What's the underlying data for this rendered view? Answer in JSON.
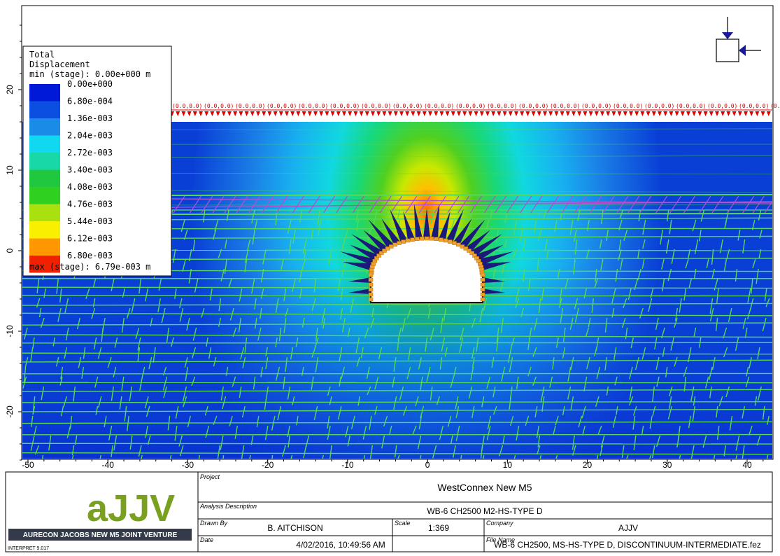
{
  "plot": {
    "x_ticks": [
      "-50",
      "-40",
      "-30",
      "-20",
      "-10",
      "0",
      "10",
      "20",
      "30",
      "40"
    ],
    "y_ticks": [
      "20",
      "10",
      "0",
      "-10",
      "-20"
    ],
    "x_tick_values": [
      -50,
      -40,
      -30,
      -20,
      -10,
      0,
      10,
      20,
      30,
      40
    ],
    "y_tick_values": [
      20,
      10,
      0,
      -10,
      -20
    ],
    "x_range": [
      -51,
      43
    ],
    "y_range": [
      -27.5,
      30
    ],
    "load_label": "(0.0,0.0)",
    "colors": {
      "deep_blue": "#0a3fd6",
      "blue": "#1a7ee6",
      "light_blue": "#18a8f0",
      "cyan": "#10d8e8",
      "green": "#30d030",
      "yellow_green": "#b8e800",
      "orange": "#ff9000",
      "load_red": "#e00000",
      "joint_green": "#58d858",
      "bolt_navy": "#1a1a7a",
      "liner_orange": "#f0a030",
      "purple": "#b050d0"
    }
  },
  "legend": {
    "title_line1": "Total",
    "title_line2": "Displacement",
    "min_label": "min (stage): 0.00e+000 m",
    "max_label": "max (stage): 6.79e-003 m",
    "entries": [
      {
        "label": "0.00e+000",
        "color": "#0018d8"
      },
      {
        "label": "6.80e-004",
        "color": "#0a4fe0"
      },
      {
        "label": "1.36e-003",
        "color": "#1a8ce8"
      },
      {
        "label": "2.04e-003",
        "color": "#10d8f0"
      },
      {
        "label": "2.72e-003",
        "color": "#18d8a8"
      },
      {
        "label": "3.40e-003",
        "color": "#20c840"
      },
      {
        "label": "4.08e-003",
        "color": "#30d020"
      },
      {
        "label": "4.76e-003",
        "color": "#a8e010"
      },
      {
        "label": "5.44e-003",
        "color": "#f8f000"
      },
      {
        "label": "6.12e-003",
        "color": "#ff9800"
      },
      {
        "label": "6.80e-003",
        "color": "#f02000"
      }
    ]
  },
  "titleblock": {
    "logo_text": "aJJV",
    "company_banner": "AURECON JACOBS NEW M5 JOINT VENTURE",
    "software": "INTERPRET 9.017",
    "project_label": "Project",
    "project": "WestConnex New M5",
    "analysis_label": "Analysis Description",
    "analysis": "WB-6 CH2500 M2-HS-TYPE D",
    "drawn_by_label": "Drawn By",
    "drawn_by": "B. AITCHISON",
    "scale_label": "Scale",
    "scale": "1:369",
    "company_label": "Company",
    "company": "AJJV",
    "date_label": "Date",
    "date": "4/02/2016, 10:49:56 AM",
    "file_label": "File Name",
    "file": "WB-6 CH2500, MS-HS-TYPE D, DISCONTINUUM-INTERMEDIATE.fez"
  }
}
